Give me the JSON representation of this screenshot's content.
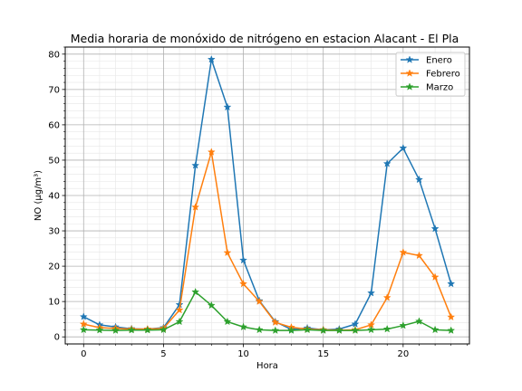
{
  "chart_data": {
    "type": "line",
    "title": "Media horaria de monóxido de nitrógeno en estacion Alacant - El Pla",
    "xlabel": "Hora",
    "ylabel": "NO (μg/m³)",
    "x": [
      0,
      1,
      2,
      3,
      4,
      5,
      6,
      7,
      8,
      9,
      10,
      11,
      12,
      13,
      14,
      15,
      16,
      17,
      18,
      19,
      20,
      21,
      22,
      23
    ],
    "xlim": [
      -1.15,
      24.15
    ],
    "ylim": [
      -2,
      82
    ],
    "xticks": [
      0,
      5,
      10,
      15,
      20
    ],
    "yticks": [
      0,
      10,
      20,
      30,
      40,
      50,
      60,
      70,
      80
    ],
    "xminor_step": 1,
    "yminor_step": 2,
    "grid": "major and minor",
    "legend_position": "top-right",
    "marker": "star",
    "series": [
      {
        "name": "Enero",
        "color": "#1f77b4",
        "values": [
          5.7,
          3.4,
          2.8,
          2.3,
          2.2,
          2.6,
          9.1,
          48.5,
          78.5,
          65.0,
          21.7,
          10.2,
          4.3,
          2.1,
          2.5,
          2.0,
          2.2,
          3.6,
          12.4,
          49.0,
          53.4,
          44.5,
          30.6,
          15.0
        ]
      },
      {
        "name": "Febrero",
        "color": "#ff7f0e",
        "values": [
          3.6,
          2.6,
          2.4,
          2.2,
          2.2,
          2.4,
          7.6,
          36.7,
          52.3,
          23.8,
          15.0,
          10.0,
          4.1,
          2.7,
          2.2,
          2.0,
          1.9,
          2.0,
          3.4,
          11.1,
          23.9,
          23.0,
          16.9,
          5.6
        ]
      },
      {
        "name": "Marzo",
        "color": "#2ca02c",
        "values": [
          2.0,
          1.9,
          1.8,
          1.9,
          1.9,
          2.0,
          4.3,
          12.7,
          8.9,
          4.3,
          2.8,
          2.0,
          1.8,
          1.8,
          2.0,
          1.8,
          1.8,
          1.8,
          2.0,
          2.2,
          3.2,
          4.4,
          2.0,
          1.8
        ]
      }
    ]
  }
}
